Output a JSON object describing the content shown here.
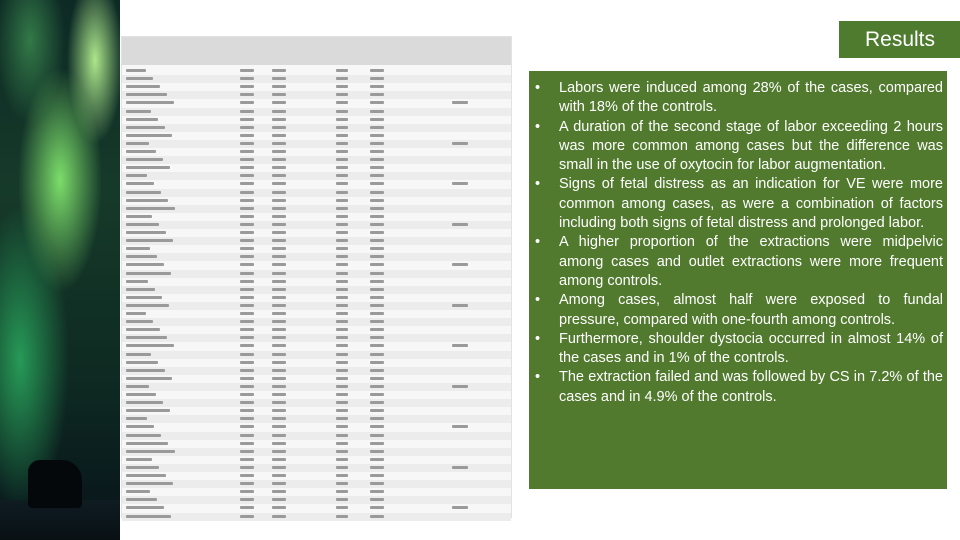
{
  "slide": {
    "title": "Results",
    "bullet_glyph": "•",
    "bullets": [
      "Labors were induced among 28% of the cases, compared with 18% of the controls.",
      "A duration of the second stage of labor exceeding 2 hours was more common among cases but the difference was small in the use of oxytocin for labor augmentation.",
      " Signs of fetal distress as an indication for VE were more common among cases, as were a combination of factors including both signs of fetal distress and prolonged labor.",
      "A higher proportion of the extractions were midpelvic among cases and outlet extractions were more frequent among controls.",
      "Among cases, almost half were exposed to fundal pressure, compared with one-fourth among controls.",
      "Furthermore, shoulder dystocia occurred in almost 14% of the cases and in 1% of the controls.",
      "The extraction failed and was followed by CS in 7.2% of the cases and in 4.9% of the controls."
    ]
  },
  "colors": {
    "panel_green": "#517a2e",
    "title_green": "#4f7b2f",
    "text": "#ffffff"
  }
}
